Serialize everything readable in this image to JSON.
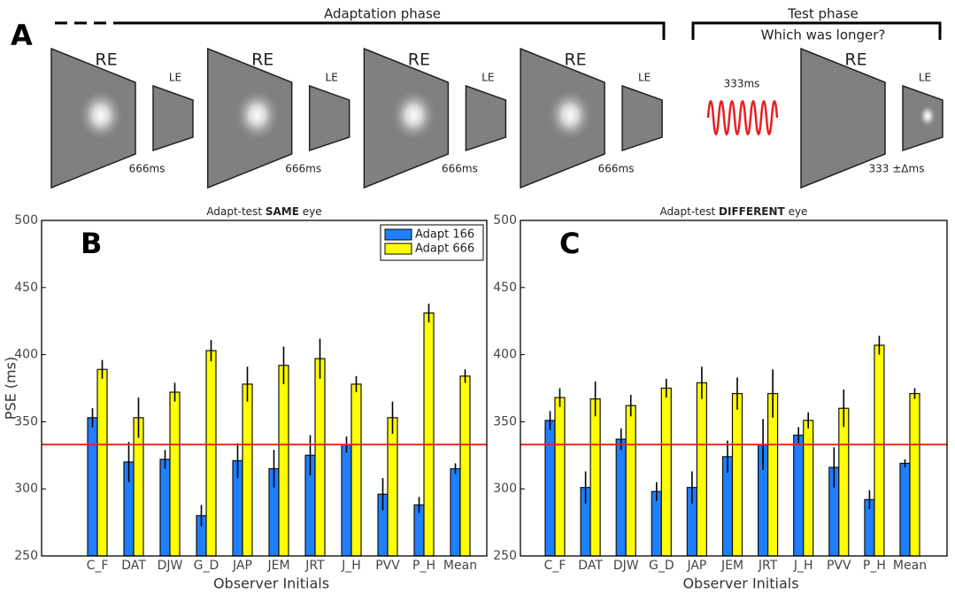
{
  "panel_a": {
    "label": "A",
    "adaptation_title": "Adaptation phase",
    "test_title": "Test phase",
    "question": "Which was longer?",
    "adapt_frames": [
      {
        "big_eye": "RE",
        "small_eye": "LE",
        "duration": "666ms"
      },
      {
        "big_eye": "RE",
        "small_eye": "LE",
        "duration": "666ms"
      },
      {
        "big_eye": "RE",
        "small_eye": "LE",
        "duration": "666ms"
      },
      {
        "big_eye": "RE",
        "small_eye": "LE",
        "duration": "666ms"
      }
    ],
    "test_frame": {
      "tone": "333ms",
      "big_eye": "RE",
      "small_eye": "LE",
      "duration": "333 ±Δms"
    }
  },
  "chart_data": [
    {
      "type": "bar",
      "panel_label": "B",
      "title": [
        "Adapt-test",
        "SAME",
        "eye"
      ],
      "ylabel": "PSE (ms)",
      "xlabel": "Observer Initials",
      "categories": [
        "C_F",
        "DAT",
        "DJW",
        "G_D",
        "JAP",
        "JEM",
        "JRT",
        "J_H",
        "PVV",
        "P_H",
        "Mean"
      ],
      "series": [
        {
          "name": "Adapt 166",
          "color": "#1f7fff",
          "values": [
            353,
            320,
            322,
            280,
            321,
            315,
            325,
            333,
            296,
            288,
            315
          ],
          "errors": [
            7,
            15,
            7,
            8,
            13,
            14,
            15,
            6,
            12,
            6,
            4
          ]
        },
        {
          "name": "Adapt 666",
          "color": "#ffff00",
          "values": [
            389,
            353,
            372,
            403,
            378,
            392,
            397,
            378,
            353,
            431,
            384
          ],
          "errors": [
            7,
            15,
            7,
            8,
            13,
            14,
            15,
            6,
            12,
            7,
            5
          ]
        }
      ],
      "reference_line": 333,
      "reference_color": "#e8201c",
      "ylim": [
        250,
        500
      ],
      "yticks": [
        250,
        300,
        350,
        400,
        450,
        500
      ],
      "legend": "upper right"
    },
    {
      "type": "bar",
      "panel_label": "C",
      "title": [
        "Adapt-test",
        "DIFFERENT",
        "eye"
      ],
      "xlabel": "Observer Initials",
      "categories": [
        "C_F",
        "DAT",
        "DJW",
        "G_D",
        "JAP",
        "JEM",
        "JRT",
        "J_H",
        "PVV",
        "P_H",
        "Mean"
      ],
      "series": [
        {
          "color": "#1f7fff",
          "values": [
            351,
            301,
            337,
            298,
            301,
            324,
            333,
            340,
            316,
            292,
            319
          ],
          "errors": [
            7,
            12,
            8,
            7,
            12,
            12,
            19,
            6,
            15,
            7,
            3
          ]
        },
        {
          "color": "#ffff00",
          "values": [
            368,
            367,
            362,
            375,
            379,
            371,
            371,
            351,
            360,
            407,
            371
          ],
          "errors": [
            7,
            13,
            8,
            7,
            12,
            12,
            18,
            6,
            14,
            7,
            4
          ]
        }
      ],
      "reference_line": 333,
      "reference_color": "#e8201c",
      "ylim": [
        250,
        500
      ],
      "yticks": [
        250,
        300,
        350,
        400,
        450,
        500
      ],
      "legend": false
    }
  ]
}
